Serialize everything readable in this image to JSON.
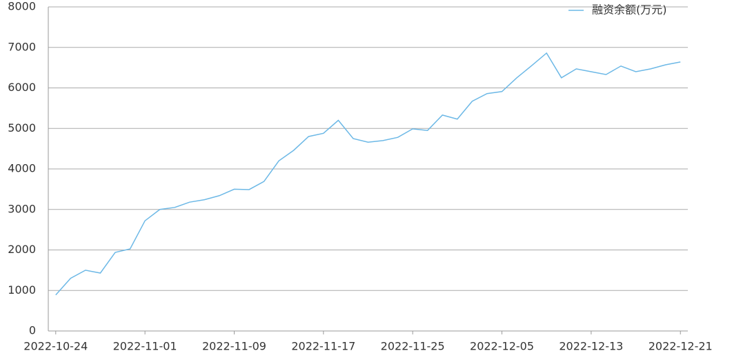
{
  "chart_data": {
    "type": "line",
    "categories": [
      "2022-10-24",
      null,
      null,
      null,
      null,
      null,
      "2022-11-01",
      null,
      null,
      null,
      null,
      null,
      "2022-11-09",
      null,
      null,
      null,
      null,
      null,
      "2022-11-17",
      null,
      null,
      null,
      null,
      null,
      "2022-11-25",
      null,
      null,
      null,
      null,
      null,
      "2022-12-05",
      null,
      null,
      null,
      null,
      null,
      "2022-12-13",
      null,
      null,
      null,
      null,
      null,
      "2022-12-21"
    ],
    "series": [
      {
        "name": "融资余额(万元)",
        "color": "#6cb8e6",
        "values": [
          890,
          1300,
          1500,
          1430,
          1940,
          2025,
          2720,
          3000,
          3050,
          3180,
          3240,
          3340,
          3500,
          3490,
          3690,
          4200,
          4460,
          4800,
          4880,
          5200,
          4750,
          4660,
          4700,
          4780,
          4990,
          4950,
          5330,
          5230,
          5670,
          5860,
          5910,
          6250,
          6550,
          6860,
          6250,
          6470,
          6400,
          6330,
          6540,
          6400,
          6470,
          6570,
          6640
        ]
      }
    ],
    "ylim": [
      0,
      8000
    ],
    "yticks": [
      0,
      1000,
      2000,
      3000,
      4000,
      5000,
      6000,
      7000,
      8000
    ],
    "grid": true,
    "legend": "top-right"
  }
}
